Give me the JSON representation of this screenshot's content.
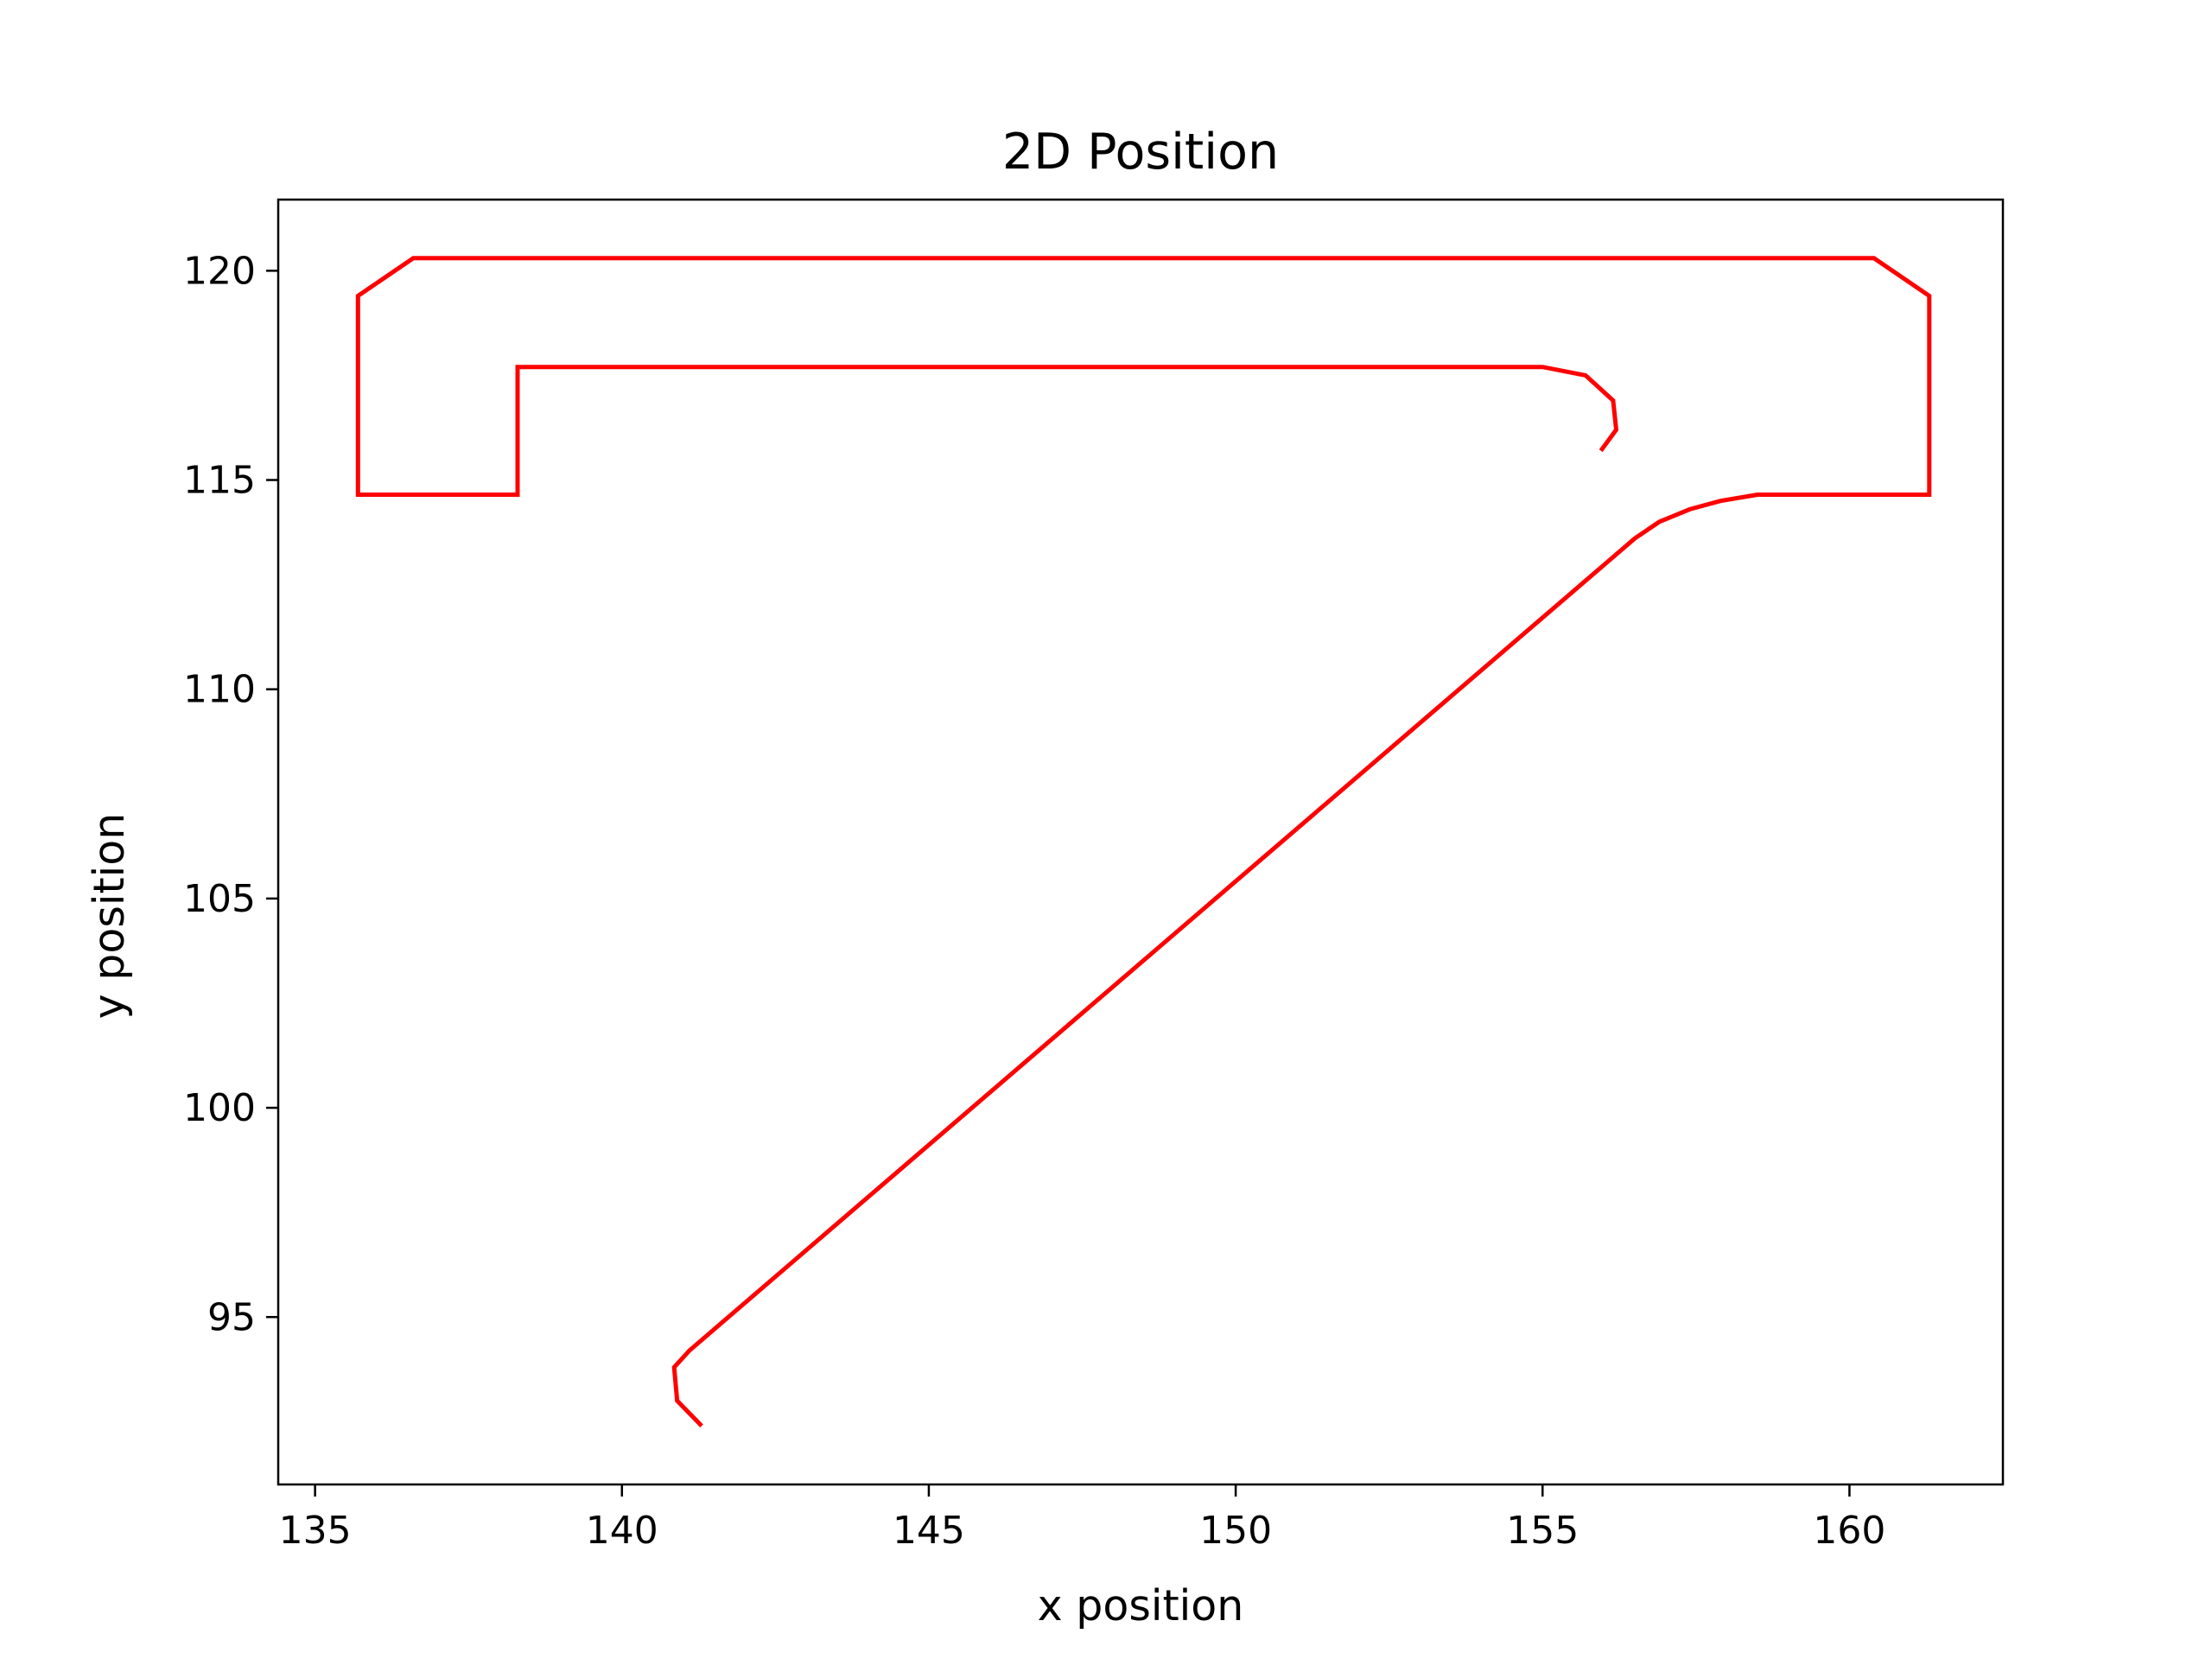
{
  "chart_data": {
    "type": "line",
    "title": "2D Position",
    "xlabel": "x position",
    "ylabel": "y position",
    "xlim": [
      134.4,
      162.5
    ],
    "ylim": [
      91.0,
      121.7
    ],
    "xticks": [
      135,
      140,
      145,
      150,
      155,
      160
    ],
    "yticks": [
      95,
      100,
      105,
      110,
      115,
      120
    ],
    "grid": false,
    "line_color": "#ff0000",
    "series": [
      {
        "x": [
          141.3,
          140.9,
          140.85,
          141.1,
          156.5,
          156.9,
          157.4,
          157.9,
          158.5,
          161.3,
          161.3,
          160.4,
          136.6,
          135.7,
          135.7,
          138.3,
          138.3,
          155.0,
          155.7,
          156.15,
          156.2,
          155.95
        ],
        "y": [
          92.4,
          93.0,
          93.8,
          94.2,
          113.6,
          114.0,
          114.3,
          114.5,
          114.65,
          114.65,
          119.4,
          120.3,
          120.3,
          119.4,
          114.65,
          114.65,
          117.7,
          117.7,
          117.5,
          116.9,
          116.2,
          115.7
        ]
      }
    ]
  }
}
